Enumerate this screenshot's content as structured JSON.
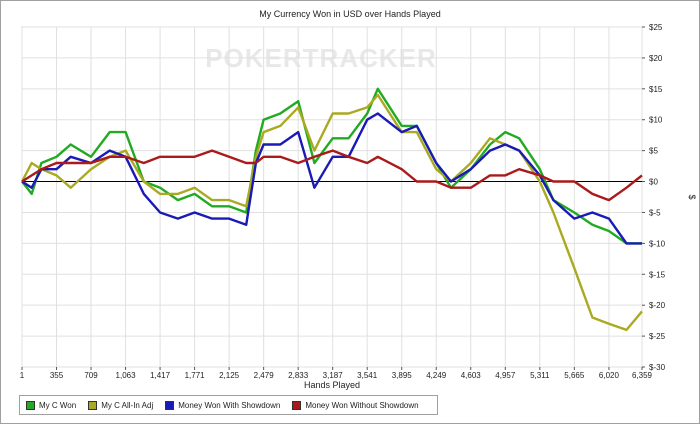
{
  "chart_data": {
    "type": "line",
    "title": "My Currency Won in USD over Hands Played",
    "xlabel": "Hands Played",
    "ylabel": "$",
    "watermark": "POKERTRACKER",
    "xlim": [
      1,
      6359
    ],
    "ylim": [
      -30,
      25
    ],
    "x_ticks": [
      "1",
      "355",
      "709",
      "1,063",
      "1,417",
      "1,771",
      "2,125",
      "2,479",
      "2,833",
      "3,187",
      "3,541",
      "3,895",
      "4,249",
      "4,603",
      "4,957",
      "5,311",
      "5,665",
      "6,020",
      "6,359"
    ],
    "y_ticks": [
      "$25",
      "$20",
      "$15",
      "$10",
      "$5",
      "$0",
      "$-5",
      "$-10",
      "$-15",
      "$-20",
      "$-25",
      "$-30"
    ],
    "grid": "vertical and horizontal",
    "legend": "bottom-left",
    "x": [
      1,
      100,
      200,
      355,
      500,
      709,
      900,
      1063,
      1250,
      1417,
      1600,
      1771,
      1950,
      2125,
      2300,
      2400,
      2479,
      2650,
      2833,
      3000,
      3187,
      3350,
      3541,
      3650,
      3895,
      4050,
      4249,
      4400,
      4603,
      4800,
      4957,
      5100,
      5311,
      5450,
      5665,
      5850,
      6020,
      6200,
      6359
    ],
    "series": [
      {
        "name": "My C Won",
        "color": "#22aa22",
        "values": [
          0,
          -2,
          3,
          4,
          6,
          4,
          8,
          8,
          0,
          -1,
          -3,
          -2,
          -4,
          -4,
          -5,
          5,
          10,
          11,
          13,
          3,
          7,
          7,
          11,
          15,
          9,
          9,
          3,
          -1,
          2,
          6,
          8,
          7,
          2,
          -3,
          -5,
          -7,
          -8,
          -10,
          -10
        ]
      },
      {
        "name": "My C All-In Adj",
        "color": "#aaaa22",
        "values": [
          0,
          3,
          2,
          1,
          -1,
          2,
          4,
          5,
          0,
          -2,
          -2,
          -1,
          -3,
          -3,
          -4,
          4,
          8,
          9,
          12,
          5,
          11,
          11,
          12,
          14,
          8,
          8,
          2,
          0,
          3,
          7,
          6,
          5,
          0,
          -5,
          -14,
          -22,
          -23,
          -24,
          -21
        ]
      },
      {
        "name": "Money Won With Showdown",
        "color": "#1a1ab5",
        "values": [
          0,
          -1,
          2,
          2,
          4,
          3,
          5,
          4,
          -2,
          -5,
          -6,
          -5,
          -6,
          -6,
          -7,
          3,
          6,
          6,
          8,
          -1,
          4,
          4,
          10,
          11,
          8,
          9,
          3,
          0,
          2,
          5,
          6,
          5,
          1,
          -3,
          -6,
          -5,
          -6,
          -10,
          -10
        ]
      },
      {
        "name": "Money Won Without Showdown",
        "color": "#aa1a1a",
        "values": [
          0,
          1,
          2,
          3,
          3,
          3,
          4,
          4,
          3,
          4,
          4,
          4,
          5,
          4,
          3,
          3,
          4,
          4,
          3,
          4,
          5,
          4,
          3,
          4,
          2,
          0,
          0,
          -1,
          -1,
          1,
          1,
          2,
          1,
          0,
          0,
          -2,
          -3,
          -1,
          1
        ]
      }
    ]
  }
}
